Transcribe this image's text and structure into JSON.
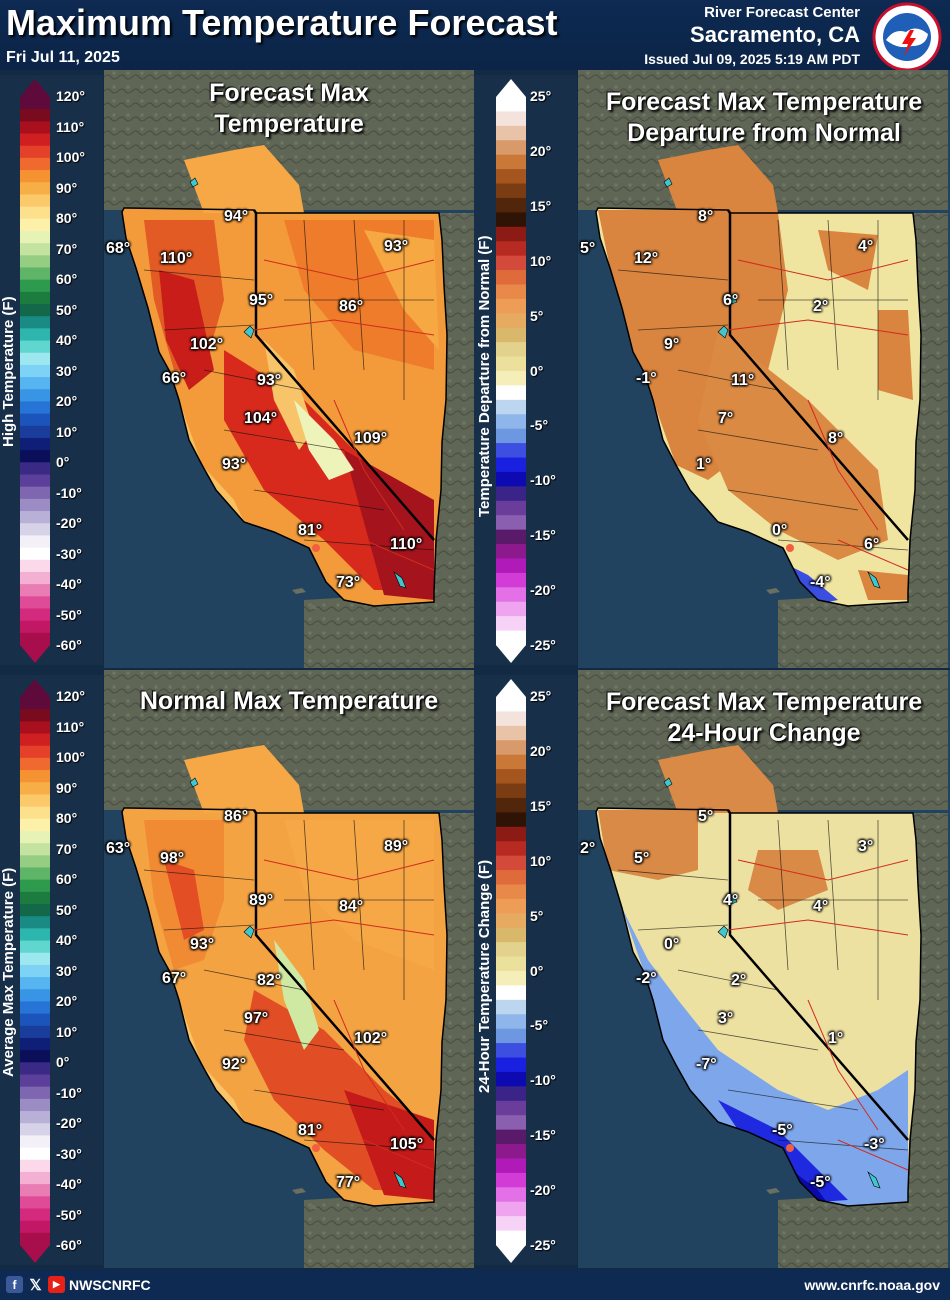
{
  "header": {
    "title": "Maximum Temperature Forecast",
    "date": "Fri Jul 11, 2025",
    "rfc_line1": "River Forecast Center",
    "rfc_line2": "Sacramento, CA",
    "issued": "Issued Jul 09, 2025 5:19 AM PDT",
    "logo_icon": "nws-logo-icon"
  },
  "footer": {
    "social_handle": "NWSCNRFC",
    "url": "www.cnrfc.noaa.gov"
  },
  "legends": {
    "temp_top": {
      "label": "High Temperature (F)",
      "ticks": [
        "120°",
        "110°",
        "100°",
        "90°",
        "80°",
        "70°",
        "60°",
        "50°",
        "40°",
        "30°",
        "20°",
        "10°",
        "0°",
        "-10°",
        "-20°",
        "-30°",
        "-40°",
        "-50°",
        "-60°"
      ]
    },
    "temp_bottom": {
      "label": "Average Max Temperature (F)",
      "ticks": [
        "120°",
        "110°",
        "100°",
        "90°",
        "80°",
        "70°",
        "60°",
        "50°",
        "40°",
        "30°",
        "20°",
        "10°",
        "0°",
        "-10°",
        "-20°",
        "-30°",
        "-40°",
        "-50°",
        "-60°"
      ]
    },
    "dep_top": {
      "label": "Temperature Departure from Normal (F)",
      "ticks": [
        "25°",
        "20°",
        "15°",
        "10°",
        "5°",
        "0°",
        "-5°",
        "-10°",
        "-15°",
        "-20°",
        "-25°"
      ]
    },
    "dep_bottom": {
      "label": "24-Hour Temperature Change (F)",
      "ticks": [
        "25°",
        "20°",
        "15°",
        "10°",
        "5°",
        "0°",
        "-5°",
        "-10°",
        "-15°",
        "-20°",
        "-25°"
      ]
    }
  },
  "panels": {
    "forecast": {
      "title_line1": "Forecast Max",
      "title_line2": "Temperature",
      "values": [
        "94°",
        "93°",
        "68°",
        "110°",
        "95°",
        "86°",
        "102°",
        "66°",
        "93°",
        "104°",
        "109°",
        "93°",
        "81°",
        "110°",
        "73°"
      ]
    },
    "departure": {
      "title_line1": "Forecast Max Temperature",
      "title_line2": "Departure from Normal",
      "values": [
        "8°",
        "4°",
        "5°",
        "12°",
        "6°",
        "2°",
        "9°",
        "-1°",
        "11°",
        "7°",
        "8°",
        "1°",
        "0°",
        "6°",
        "-4°"
      ]
    },
    "normal": {
      "title_line1": "Normal Max Temperature",
      "values": [
        "86°",
        "89°",
        "63°",
        "98°",
        "89°",
        "84°",
        "93°",
        "67°",
        "82°",
        "97°",
        "102°",
        "92°",
        "81°",
        "105°",
        "77°"
      ]
    },
    "change": {
      "title_line1": "Forecast Max Temperature",
      "title_line2": "24-Hour Change",
      "values": [
        "5°",
        "3°",
        "2°",
        "5°",
        "4°",
        "4°",
        "0°",
        "-2°",
        "2°",
        "3°",
        "1°",
        "-7°",
        "-5°",
        "-3°",
        "-5°"
      ]
    }
  },
  "colors": {
    "background": "#132a44",
    "ocean": "#22435f",
    "land_outside": "#5b6252",
    "hot": "#d42a1c",
    "warm": "#f08a2c",
    "mild": "#f7b253",
    "neutral_yellow": "#efe5a2",
    "cool_blue": "#6f9ee3"
  }
}
